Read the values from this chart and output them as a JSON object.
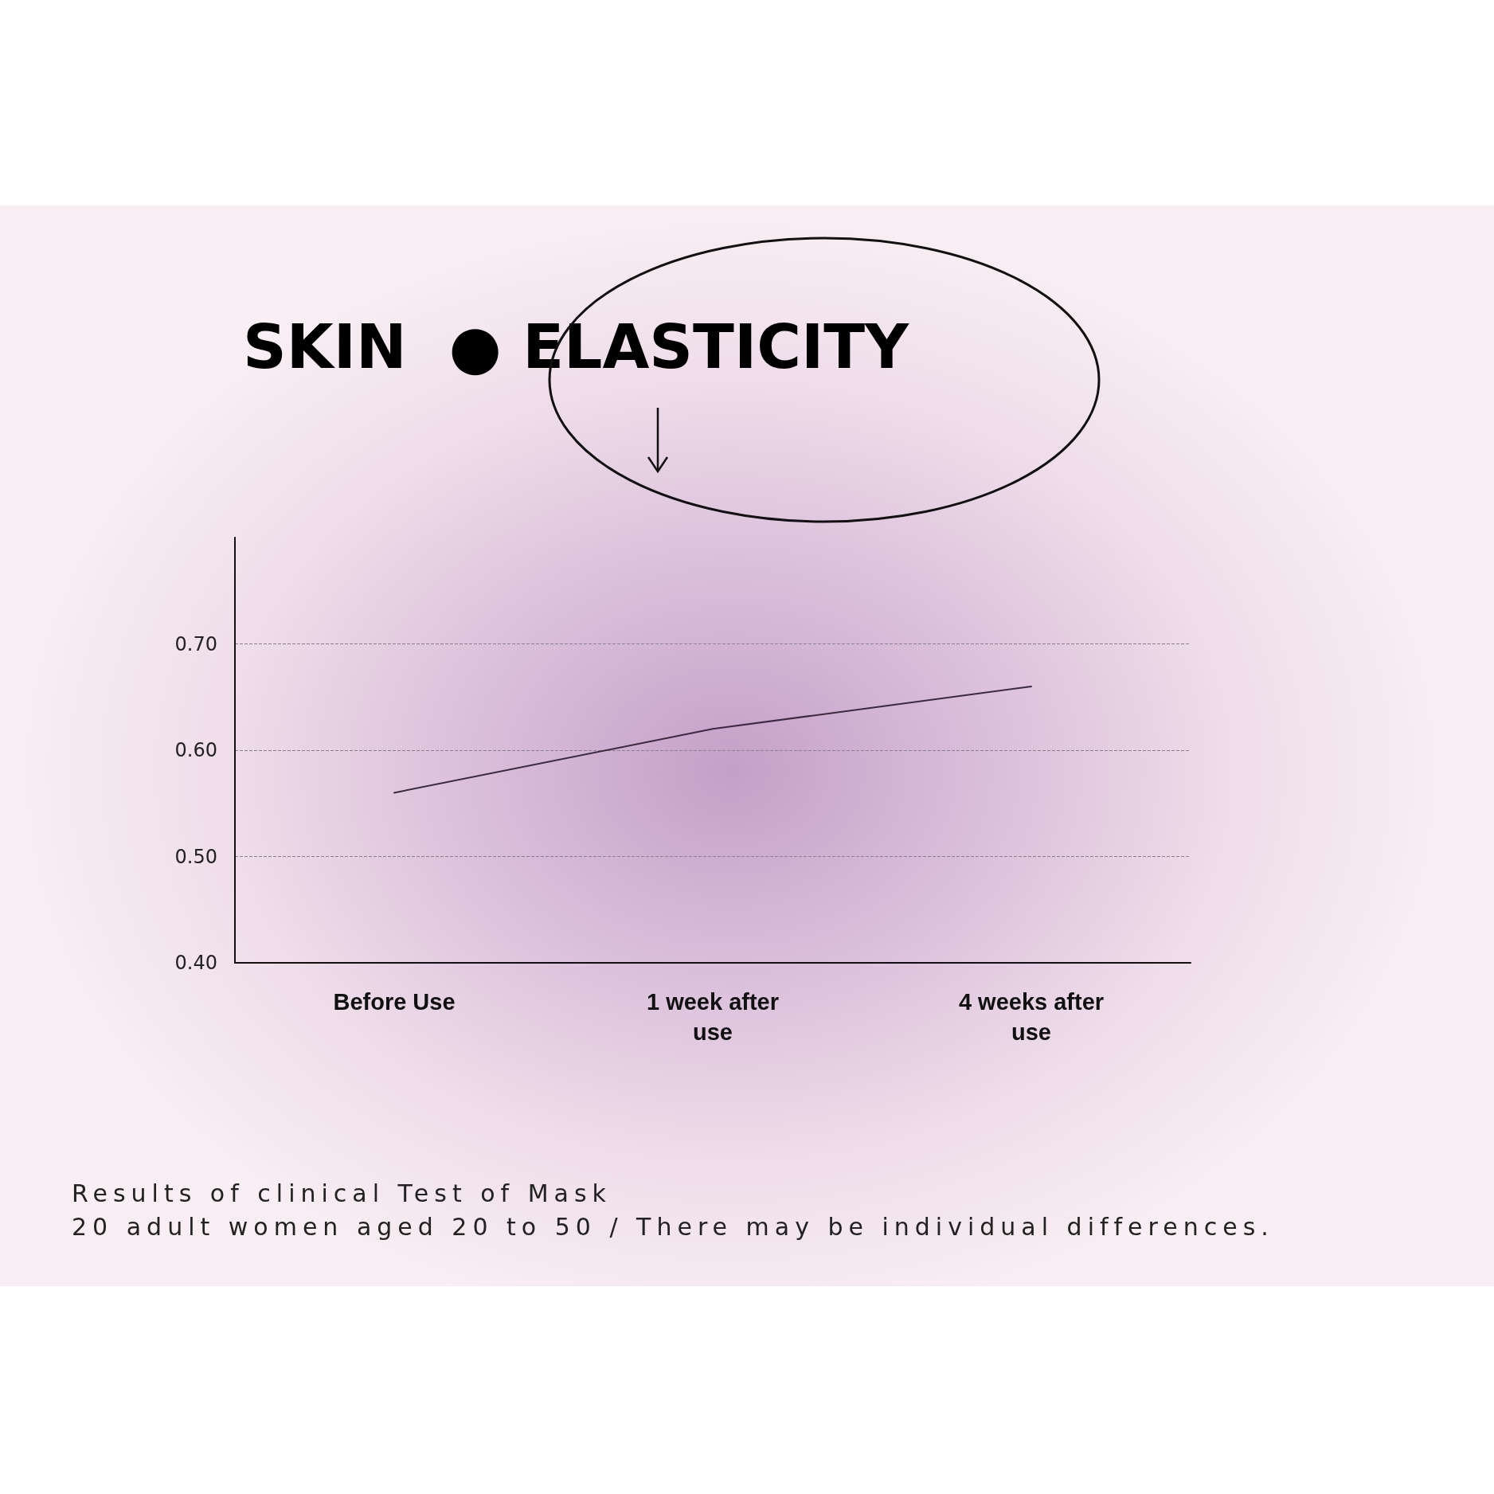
{
  "chart_data": {
    "type": "line",
    "title": "SKIN  ● ELASTICITY",
    "categories": [
      "Before Use",
      "1 week after\nuse",
      "4 weeks after\nuse"
    ],
    "series": [
      {
        "color": "#3a2a40",
        "values": [
          0.56,
          0.62,
          0.66
        ]
      }
    ],
    "ylim": [
      0.4,
      0.8
    ],
    "yticks": [
      {
        "value": 0.4,
        "label": "0.40"
      },
      {
        "value": 0.5,
        "label": "0.50"
      },
      {
        "value": 0.6,
        "label": "0.60"
      },
      {
        "value": 0.7,
        "label": "0.70"
      }
    ],
    "grid": "y",
    "marker": "none",
    "line_style": "solid",
    "annotations": [
      "Results of clinical Test of Mask",
      "20 adult women aged 20 to 50 / There may be individual differences."
    ]
  }
}
